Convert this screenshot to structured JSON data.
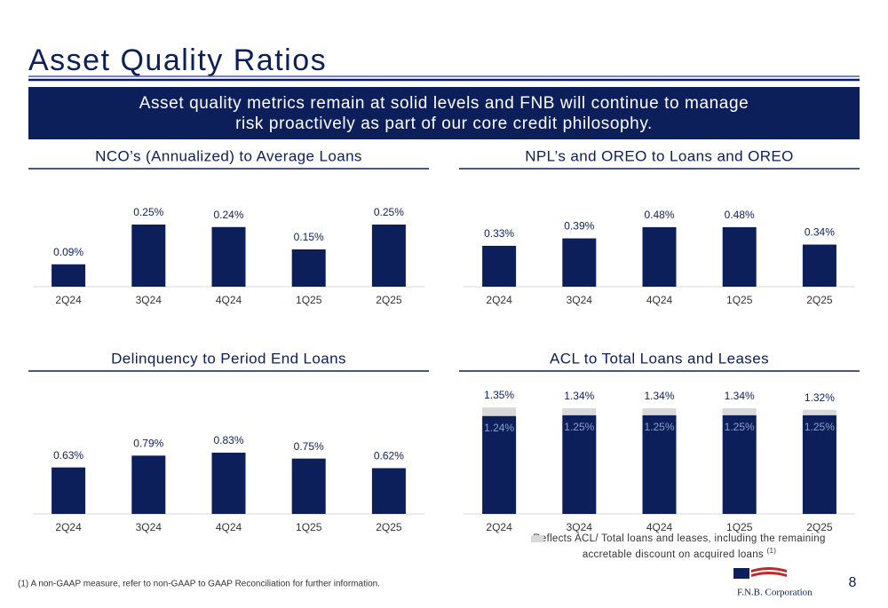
{
  "slide_title": "Asset Quality Ratios",
  "banner": [
    "Asset quality metrics remain at solid levels and FNB will continue to manage",
    "risk proactively as part of our core credit philosophy."
  ],
  "footnote": "(1) A non-GAAP measure, refer to non-GAAP to GAAP Reconciliation for further information.",
  "page_number": "8",
  "logo": "F.N.B. Corporation",
  "chart_data": [
    {
      "type": "bar",
      "title": "NCO’s (Annualized) to Average Loans",
      "categories": [
        "2Q24",
        "3Q24",
        "4Q24",
        "1Q25",
        "2Q25"
      ],
      "values": [
        0.09,
        0.25,
        0.24,
        0.15,
        0.25
      ],
      "value_labels": [
        "0.09%",
        "0.25%",
        "0.24%",
        "0.15%",
        "0.25%"
      ],
      "color": "#0c1f5b"
    },
    {
      "type": "bar",
      "title": "NPL’s and OREO to Loans and OREO",
      "categories": [
        "2Q24",
        "3Q24",
        "4Q24",
        "1Q25",
        "2Q25"
      ],
      "values": [
        0.33,
        0.39,
        0.48,
        0.48,
        0.34
      ],
      "value_labels": [
        "0.33%",
        "0.39%",
        "0.48%",
        "0.48%",
        "0.34%"
      ],
      "color": "#0c1f5b"
    },
    {
      "type": "bar",
      "title": "Delinquency to Period End Loans",
      "categories": [
        "2Q24",
        "3Q24",
        "4Q24",
        "1Q25",
        "2Q25"
      ],
      "values": [
        0.63,
        0.79,
        0.83,
        0.75,
        0.62
      ],
      "value_labels": [
        "0.63%",
        "0.79%",
        "0.83%",
        "0.75%",
        "0.62%"
      ],
      "color": "#0c1f5b"
    },
    {
      "type": "overlap_bar",
      "title": "ACL to Total Loans and Leases",
      "categories": [
        "2Q24",
        "3Q24",
        "4Q24",
        "1Q25",
        "2Q25"
      ],
      "series": [
        {
          "color": "#0c1f5b",
          "values": [
            1.24,
            1.25,
            1.25,
            1.25,
            1.25
          ],
          "value_labels": [
            "1.24%",
            "1.25%",
            "1.25%",
            "1.25%",
            "1.25%"
          ]
        },
        {
          "name": "Reflects ACL/ Total loans and leases, including the remaining accretable discount on acquired loans",
          "note": "(1)",
          "color": "#d9d9d9",
          "values": [
            1.35,
            1.34,
            1.34,
            1.34,
            1.32
          ],
          "value_labels": [
            "1.35%",
            "1.34%",
            "1.34%",
            "1.34%",
            "1.32%"
          ]
        }
      ]
    }
  ]
}
